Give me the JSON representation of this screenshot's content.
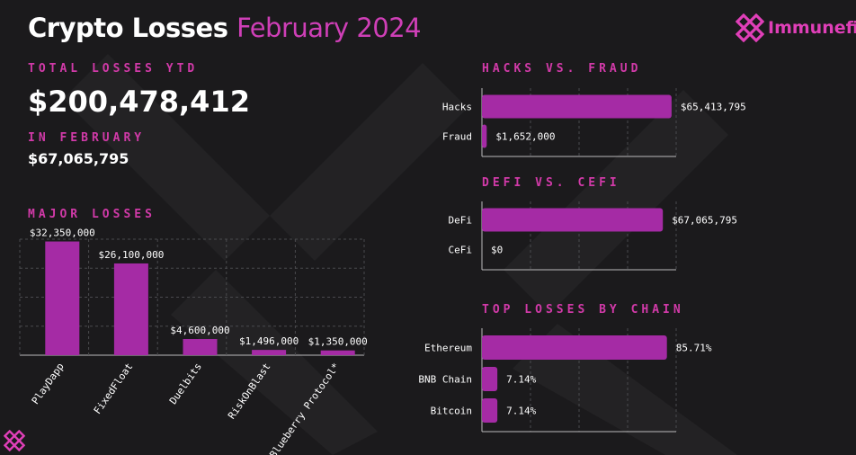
{
  "header": {
    "title_main": "Crypto Losses",
    "title_accent": "February 2024",
    "brand": "Immunefi"
  },
  "summary": {
    "total_label": "TOTAL LOSSES YTD",
    "total_value": "$200,478,412",
    "month_label": "IN FEBRUARY",
    "month_value": "$67,065,795"
  },
  "colors": {
    "bar": "#a52ba5",
    "accent": "#d13aa8",
    "background": "#1b1a1c"
  },
  "chart_data": [
    {
      "type": "bar",
      "title": "MAJOR LOSSES",
      "categories": [
        "PlayDapp",
        "FixedFloat",
        "Duelbits",
        "RiskOnBlast",
        "Blueberry Protocol*"
      ],
      "values": [
        32350000,
        26100000,
        4600000,
        1496000,
        1350000
      ],
      "data_labels": [
        "$32,350,000",
        "$26,100,000",
        "$4,600,000",
        "$1,496,000",
        "$1,350,000"
      ],
      "ylim": [
        0,
        33000000
      ],
      "grid": true
    },
    {
      "type": "bar",
      "orientation": "horizontal",
      "title": "HACKS VS. FRAUD",
      "categories": [
        "Hacks",
        "Fraud"
      ],
      "values": [
        65413795,
        1652000
      ],
      "data_labels": [
        "$65,413,795",
        "$1,652,000"
      ],
      "xlim": [
        0,
        67000000
      ],
      "grid": true
    },
    {
      "type": "bar",
      "orientation": "horizontal",
      "title": "DEFI VS. CEFI",
      "categories": [
        "DeFi",
        "CeFi"
      ],
      "values": [
        67065795,
        0
      ],
      "data_labels": [
        "$67,065,795",
        "$0"
      ],
      "xlim": [
        0,
        72000000
      ],
      "grid": true
    },
    {
      "type": "bar",
      "orientation": "horizontal",
      "title": "TOP LOSSES BY CHAIN",
      "categories": [
        "Ethereum",
        "BNB Chain",
        "Bitcoin"
      ],
      "values": [
        85.71,
        7.14,
        7.14
      ],
      "data_labels": [
        "85.71%",
        "7.14%",
        "7.14%"
      ],
      "xlim": [
        0,
        90
      ],
      "grid": true
    }
  ]
}
